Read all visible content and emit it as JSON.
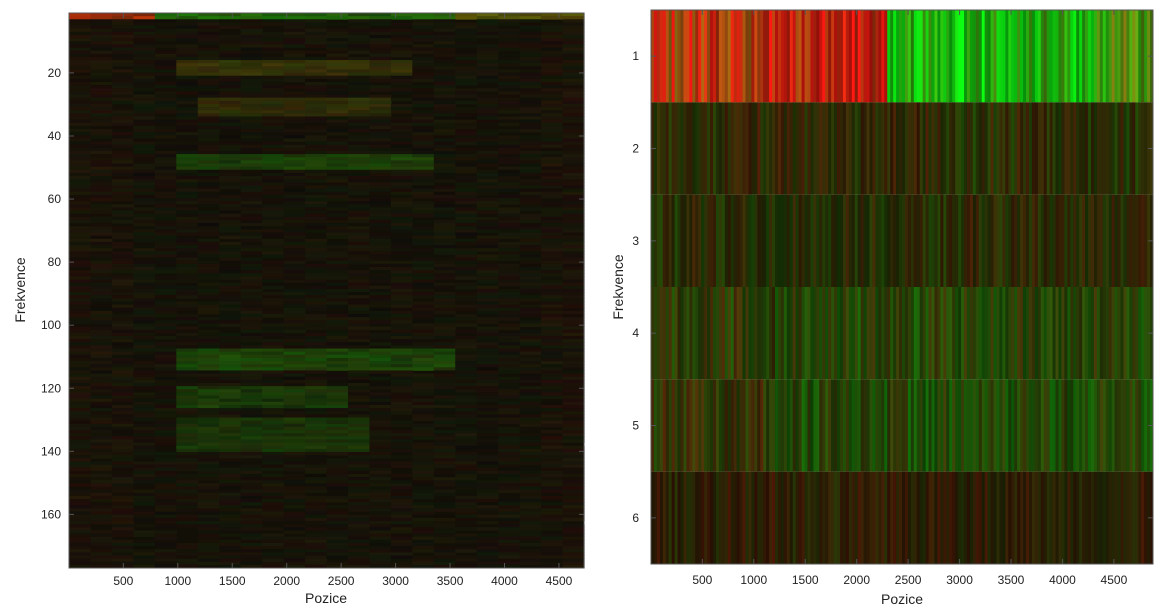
{
  "chart_data": [
    {
      "type": "heatmap",
      "colormap": "red-green",
      "colors": {
        "low_red": "#d23a0a",
        "high_green": "#3fd61a",
        "background": "#120f07"
      },
      "xlabel": "Pozice",
      "ylabel": "Frekvence",
      "xlim": [
        1,
        4730
      ],
      "ylim": [
        1,
        177
      ],
      "y_reversed": true,
      "x_ticks": [
        500,
        1000,
        1500,
        2000,
        2500,
        3000,
        3500,
        4000,
        4500
      ],
      "y_ticks": [
        20,
        40,
        60,
        80,
        100,
        120,
        140,
        160
      ],
      "grid": false,
      "rows": 177,
      "features": [
        {
          "rows": [
            1,
            2
          ],
          "x": [
            1,
            800
          ],
          "tone": "red",
          "level": 0.85
        },
        {
          "rows": [
            1,
            2
          ],
          "x": [
            800,
            3500
          ],
          "tone": "green",
          "level": 0.8
        },
        {
          "rows": [
            1,
            2
          ],
          "x": [
            3500,
            4730
          ],
          "tone": "olive",
          "level": 0.7
        },
        {
          "rows": [
            16,
            20
          ],
          "x": [
            1000,
            3100
          ],
          "tone": "olive",
          "level": 0.35
        },
        {
          "rows": [
            28,
            33
          ],
          "x": [
            1200,
            3000
          ],
          "tone": "olive",
          "level": 0.28
        },
        {
          "rows": [
            46,
            50
          ],
          "x": [
            900,
            3400
          ],
          "tone": "green",
          "level": 0.45
        },
        {
          "rows": [
            108,
            114
          ],
          "x": [
            900,
            3500
          ],
          "tone": "green",
          "level": 0.5
        },
        {
          "rows": [
            120,
            126
          ],
          "x": [
            900,
            2600
          ],
          "tone": "green",
          "level": 0.4
        },
        {
          "rows": [
            130,
            140
          ],
          "x": [
            1000,
            2800
          ],
          "tone": "green",
          "level": 0.35
        }
      ]
    },
    {
      "type": "heatmap",
      "colormap": "red-green",
      "colors": {
        "low_red": "#e0420f",
        "high_green": "#5ae61c"
      },
      "xlabel": "Pozice",
      "ylabel": "Frekvence",
      "xlim": [
        1,
        4880
      ],
      "ylim": [
        0.5,
        6.5
      ],
      "y_reversed": true,
      "x_ticks": [
        500,
        1000,
        1500,
        2000,
        2500,
        3000,
        3500,
        4000,
        4500
      ],
      "y_ticks": [
        1,
        2,
        3,
        4,
        5,
        6
      ],
      "grid": false,
      "rows": [
        1,
        2,
        3,
        4,
        5,
        6
      ],
      "row_balance": [
        [
          [
            0,
            0.24,
            -0.6
          ],
          [
            0.24,
            0.47,
            -0.85
          ],
          [
            0.47,
            0.65,
            0.9
          ],
          [
            0.65,
            0.88,
            0.75
          ],
          [
            0.88,
            1.0,
            0.3
          ]
        ],
        [
          [
            0,
            0.6,
            -0.1
          ],
          [
            0.6,
            1.0,
            0.05
          ]
        ],
        [
          [
            0,
            0.55,
            0.1
          ],
          [
            0.55,
            1.0,
            0.0
          ]
        ],
        [
          [
            0,
            0.25,
            0.1
          ],
          [
            0.25,
            1.0,
            0.3
          ]
        ],
        [
          [
            0,
            0.25,
            0.0
          ],
          [
            0.25,
            1.0,
            0.4
          ]
        ],
        [
          [
            0,
            1.0,
            -0.2
          ]
        ]
      ],
      "row_brightness": [
        1.0,
        0.42,
        0.4,
        0.5,
        0.5,
        0.35
      ]
    }
  ]
}
